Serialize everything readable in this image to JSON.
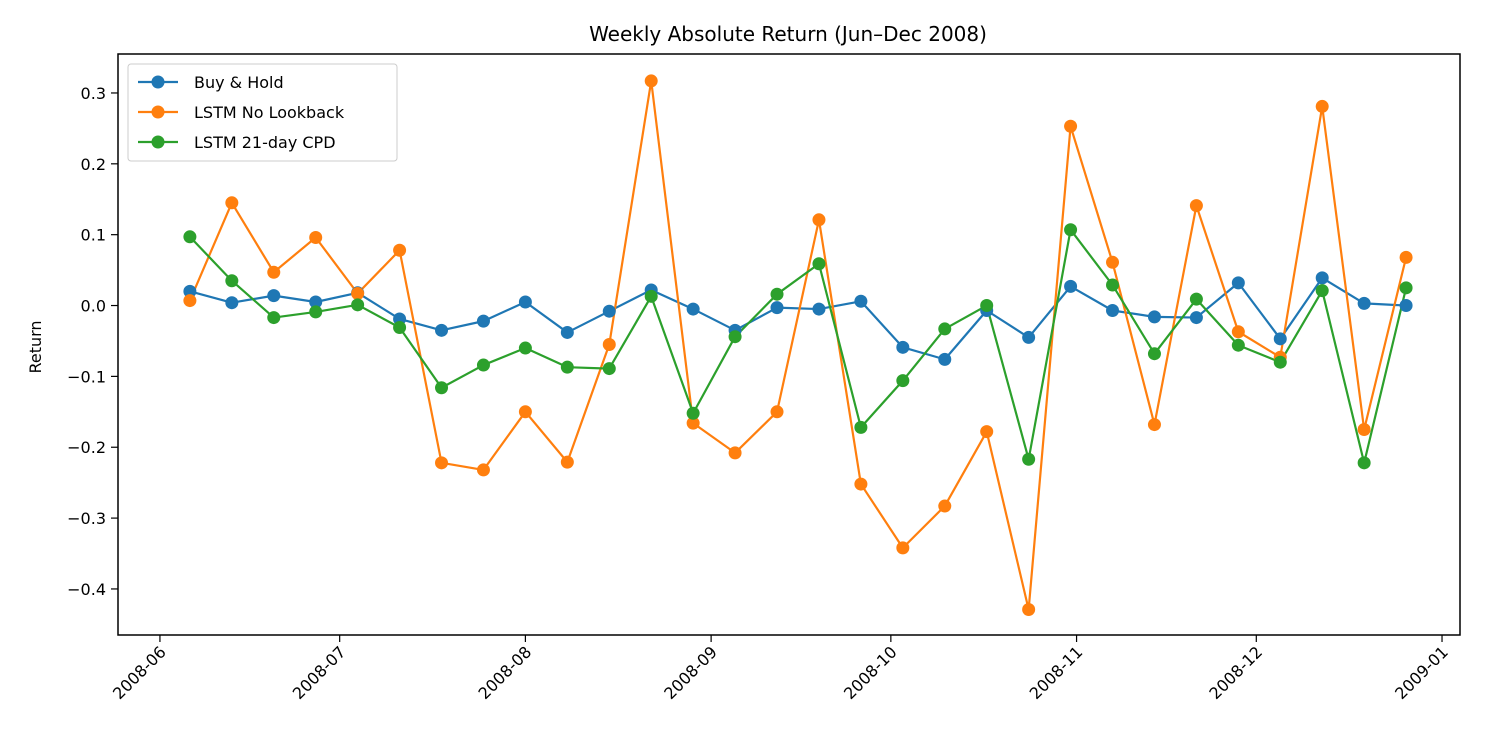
{
  "chart_data": {
    "type": "line",
    "title": "Weekly Absolute Return (Jun–Dec 2008)",
    "xlabel": "",
    "ylabel": "Return",
    "grid": false,
    "legend_position": "top-left",
    "x": [
      "2008-06-06",
      "2008-06-13",
      "2008-06-20",
      "2008-06-27",
      "2008-07-04",
      "2008-07-11",
      "2008-07-18",
      "2008-07-25",
      "2008-08-01",
      "2008-08-08",
      "2008-08-15",
      "2008-08-22",
      "2008-08-29",
      "2008-09-05",
      "2008-09-12",
      "2008-09-19",
      "2008-09-26",
      "2008-10-03",
      "2008-10-10",
      "2008-10-17",
      "2008-10-24",
      "2008-10-31",
      "2008-11-07",
      "2008-11-14",
      "2008-11-21",
      "2008-11-28",
      "2008-12-05",
      "2008-12-12",
      "2008-12-19",
      "2008-12-26"
    ],
    "xlim": [
      "2008-05-25",
      "2009-01-04"
    ],
    "ylim": [
      -0.465,
      0.355
    ],
    "x_ticks": [
      "2008-06-01",
      "2008-07-01",
      "2008-08-01",
      "2008-09-01",
      "2008-10-01",
      "2008-11-01",
      "2008-12-01",
      "2009-01-01"
    ],
    "x_tick_labels": [
      "2008-06",
      "2008-07",
      "2008-08",
      "2008-09",
      "2008-10",
      "2008-11",
      "2008-12",
      "2009-01"
    ],
    "y_ticks": [
      0.3,
      0.2,
      0.1,
      0.0,
      -0.1,
      -0.2,
      -0.3,
      -0.4
    ],
    "y_tick_labels": [
      "0.3",
      "0.2",
      "0.1",
      "0.0",
      "−0.1",
      "−0.2",
      "−0.3",
      "−0.4"
    ],
    "series": [
      {
        "name": "Buy & Hold",
        "color": "#1f77b4",
        "values": [
          0.02,
          0.004,
          0.014,
          0.005,
          0.018,
          -0.019,
          -0.035,
          -0.022,
          0.005,
          -0.038,
          -0.008,
          0.022,
          -0.005,
          -0.035,
          -0.003,
          -0.005,
          0.006,
          -0.059,
          -0.076,
          -0.007,
          -0.045,
          0.027,
          -0.007,
          -0.016,
          -0.017,
          0.032,
          -0.047,
          0.039,
          0.003,
          0.0
        ]
      },
      {
        "name": "LSTM No Lookback",
        "color": "#ff7f0e",
        "values": [
          0.007,
          0.145,
          0.047,
          0.096,
          0.017,
          0.078,
          -0.222,
          -0.232,
          -0.15,
          -0.221,
          -0.055,
          0.317,
          -0.166,
          -0.208,
          -0.15,
          0.121,
          -0.252,
          -0.342,
          -0.283,
          -0.178,
          -0.429,
          0.253,
          0.061,
          -0.168,
          0.141,
          -0.037,
          -0.073,
          0.281,
          -0.175,
          0.068
        ]
      },
      {
        "name": "LSTM 21-day CPD",
        "color": "#2ca02c",
        "values": [
          0.097,
          0.035,
          -0.017,
          -0.009,
          0.001,
          -0.031,
          -0.116,
          -0.084,
          -0.06,
          -0.087,
          -0.089,
          0.013,
          -0.152,
          -0.044,
          0.016,
          0.059,
          -0.172,
          -0.106,
          -0.033,
          0.0,
          -0.217,
          0.107,
          0.029,
          -0.068,
          0.009,
          -0.056,
          -0.08,
          0.021,
          -0.222,
          0.025
        ]
      }
    ]
  }
}
